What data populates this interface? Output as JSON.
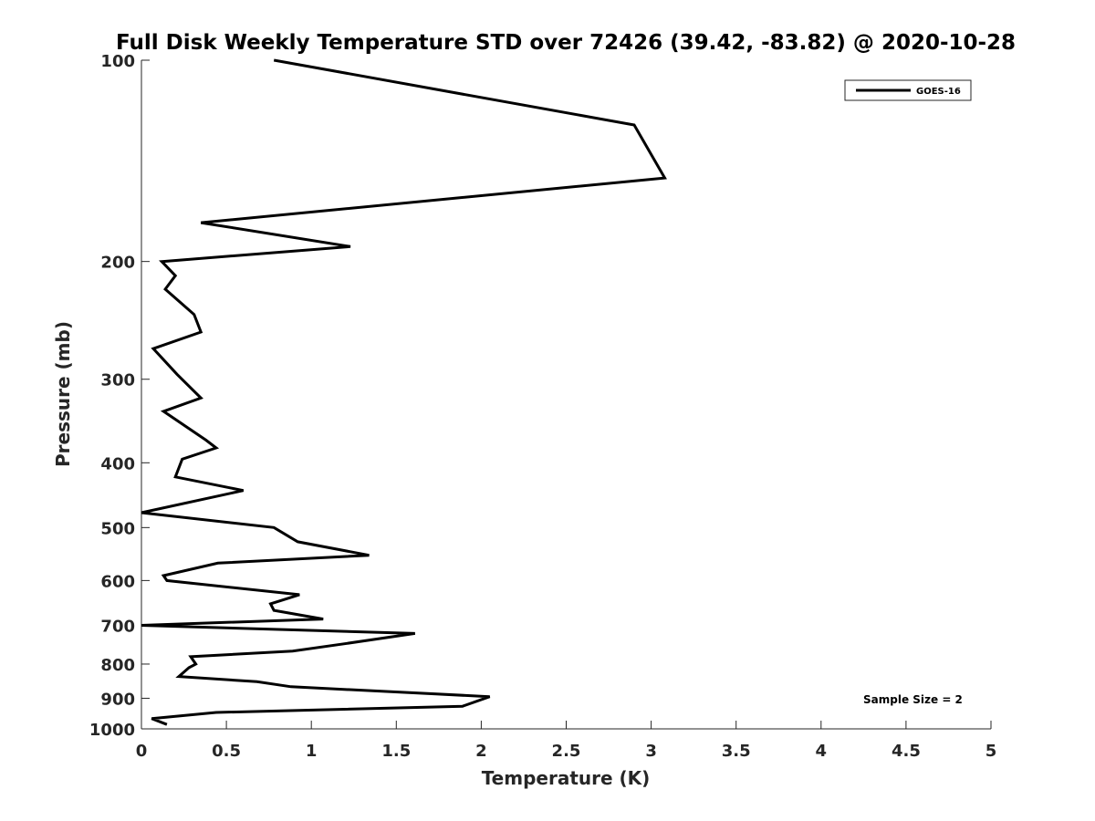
{
  "chart_data": {
    "type": "line",
    "title": "Full Disk Weekly Temperature STD over 72426 (39.42, -83.82) @ 2020-10-28",
    "xlabel": "Temperature (K)",
    "ylabel": "Pressure (mb)",
    "xlim": [
      0,
      5
    ],
    "ylim": [
      100,
      1000
    ],
    "yscale": "log",
    "y_reversed": true,
    "x_ticks": [
      "0",
      "0.5",
      "1",
      "1.5",
      "2",
      "2.5",
      "3",
      "3.5",
      "4",
      "4.5",
      "5"
    ],
    "y_ticks": [
      "100",
      "200",
      "300",
      "400",
      "500",
      "600",
      "700",
      "800",
      "900",
      "1000"
    ],
    "grid": false,
    "legend_position": "top-right",
    "series": [
      {
        "name": "GOES-16",
        "color": "#000000",
        "x": [
          0.78,
          2.9,
          3.08,
          0.35,
          1.23,
          0.12,
          0.2,
          0.14,
          0.31,
          0.35,
          0.07,
          0.21,
          0.35,
          0.13,
          0.38,
          0.44,
          0.24,
          0.2,
          0.6,
          0.0,
          0.78,
          0.92,
          1.34,
          0.45,
          0.13,
          0.15,
          0.93,
          0.76,
          0.78,
          1.07,
          0.0,
          1.61,
          1.21,
          0.89,
          0.29,
          0.32,
          0.28,
          0.22,
          0.68,
          0.88,
          2.05,
          1.89,
          0.44,
          0.06,
          0.15
        ],
        "y": [
          100,
          125,
          150,
          175,
          190,
          200,
          210,
          220,
          240,
          255,
          270,
          295,
          320,
          335,
          370,
          380,
          395,
          420,
          440,
          475,
          500,
          525,
          550,
          565,
          590,
          600,
          630,
          650,
          665,
          685,
          700,
          720,
          745,
          765,
          780,
          800,
          810,
          835,
          850,
          865,
          895,
          925,
          945,
          965,
          985
        ]
      }
    ],
    "annotations": [
      "Sample Size = 2"
    ]
  }
}
